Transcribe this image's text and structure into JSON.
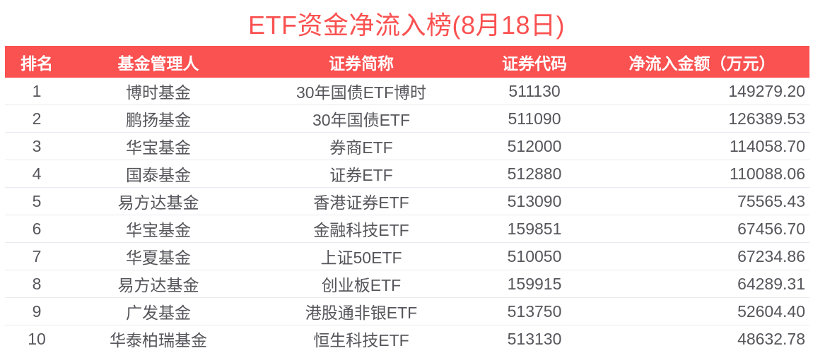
{
  "title": "ETF资金净流入榜(8月18日)",
  "colors": {
    "accent": "#FA5151",
    "header_text": "#FFFFFF",
    "body_text": "#55555B",
    "divider": "#EAEAF0",
    "background": "#FFFFFF"
  },
  "chart_data": {
    "type": "table",
    "title": "ETF资金净流入榜(8月18日)",
    "columns": [
      "排名",
      "基金管理人",
      "证券简称",
      "证券代码",
      "净流入金额（万元）"
    ],
    "rows": [
      [
        "1",
        "博时基金",
        "30年国债ETF博时",
        "511130",
        "149279.20"
      ],
      [
        "2",
        "鹏扬基金",
        "30年国债ETF",
        "511090",
        "126389.53"
      ],
      [
        "3",
        "华宝基金",
        "券商ETF",
        "512000",
        "114058.70"
      ],
      [
        "4",
        "国泰基金",
        "证券ETF",
        "512880",
        "110088.06"
      ],
      [
        "5",
        "易方达基金",
        "香港证券ETF",
        "513090",
        "75565.43"
      ],
      [
        "6",
        "华宝基金",
        "金融科技ETF",
        "159851",
        "67456.70"
      ],
      [
        "7",
        "华夏基金",
        "上证50ETF",
        "510050",
        "67234.86"
      ],
      [
        "8",
        "易方达基金",
        "创业板ETF",
        "159915",
        "64289.31"
      ],
      [
        "9",
        "广发基金",
        "港股通非银ETF",
        "513750",
        "52604.40"
      ],
      [
        "10",
        "华泰柏瑞基金",
        "恒生科技ETF",
        "513130",
        "48632.78"
      ]
    ]
  },
  "table": {
    "headers": [
      "排名",
      "基金管理人",
      "证券简称",
      "证券代码",
      "净流入金额（万元）"
    ],
    "rows": [
      {
        "rank": "1",
        "manager": "博时基金",
        "name": "30年国债ETF博时",
        "code": "511130",
        "amount": "149279.20"
      },
      {
        "rank": "2",
        "manager": "鹏扬基金",
        "name": "30年国债ETF",
        "code": "511090",
        "amount": "126389.53"
      },
      {
        "rank": "3",
        "manager": "华宝基金",
        "name": "券商ETF",
        "code": "512000",
        "amount": "114058.70"
      },
      {
        "rank": "4",
        "manager": "国泰基金",
        "name": "证券ETF",
        "code": "512880",
        "amount": "110088.06"
      },
      {
        "rank": "5",
        "manager": "易方达基金",
        "name": "香港证券ETF",
        "code": "513090",
        "amount": "75565.43"
      },
      {
        "rank": "6",
        "manager": "华宝基金",
        "name": "金融科技ETF",
        "code": "159851",
        "amount": "67456.70"
      },
      {
        "rank": "7",
        "manager": "华夏基金",
        "name": "上证50ETF",
        "code": "510050",
        "amount": "67234.86"
      },
      {
        "rank": "8",
        "manager": "易方达基金",
        "name": "创业板ETF",
        "code": "159915",
        "amount": "64289.31"
      },
      {
        "rank": "9",
        "manager": "广发基金",
        "name": "港股通非银ETF",
        "code": "513750",
        "amount": "52604.40"
      },
      {
        "rank": "10",
        "manager": "华泰柏瑞基金",
        "name": "恒生科技ETF",
        "code": "513130",
        "amount": "48632.78"
      }
    ]
  }
}
